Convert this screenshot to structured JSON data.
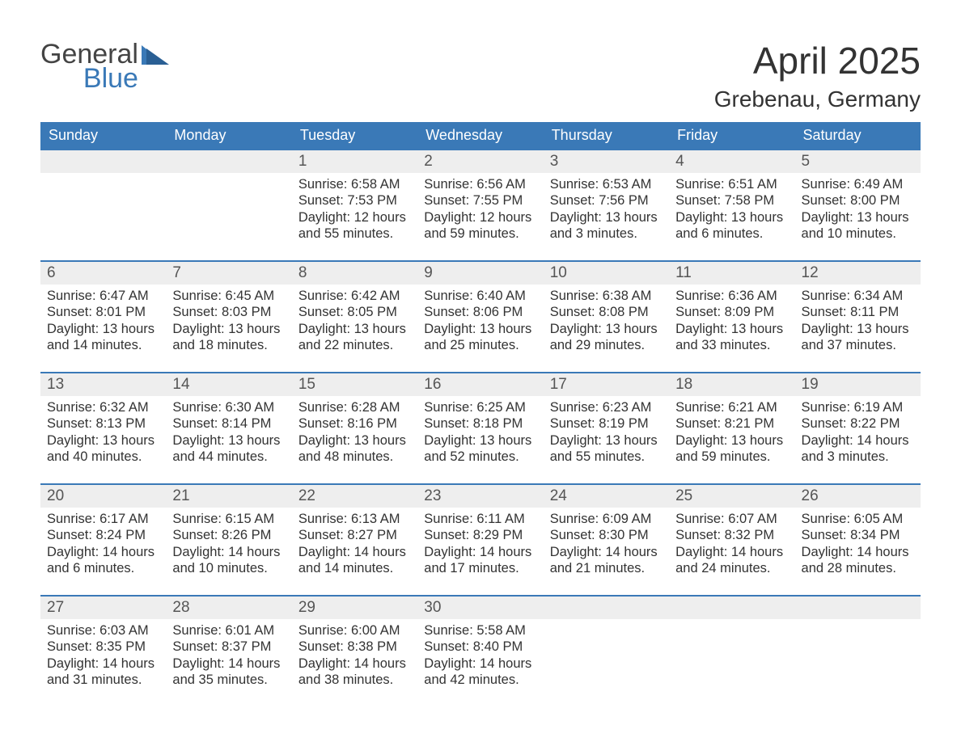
{
  "logo": {
    "general": "General",
    "blue": "Blue"
  },
  "title": {
    "month": "April 2025",
    "location": "Grebenau, Germany"
  },
  "colors": {
    "header_bg": "#3a79b7",
    "header_text": "#ffffff",
    "daynum_bg": "#eeeeee",
    "week_border": "#3a79b7",
    "text": "#333333",
    "logo_blue": "#3a79b7"
  },
  "dow": [
    "Sunday",
    "Monday",
    "Tuesday",
    "Wednesday",
    "Thursday",
    "Friday",
    "Saturday"
  ],
  "weeks": [
    {
      "days": [
        {
          "num": "",
          "sunrise": "",
          "sunset": "",
          "daylight": ""
        },
        {
          "num": "",
          "sunrise": "",
          "sunset": "",
          "daylight": ""
        },
        {
          "num": "1",
          "sunrise": "Sunrise: 6:58 AM",
          "sunset": "Sunset: 7:53 PM",
          "daylight": "Daylight: 12 hours and 55 minutes."
        },
        {
          "num": "2",
          "sunrise": "Sunrise: 6:56 AM",
          "sunset": "Sunset: 7:55 PM",
          "daylight": "Daylight: 12 hours and 59 minutes."
        },
        {
          "num": "3",
          "sunrise": "Sunrise: 6:53 AM",
          "sunset": "Sunset: 7:56 PM",
          "daylight": "Daylight: 13 hours and 3 minutes."
        },
        {
          "num": "4",
          "sunrise": "Sunrise: 6:51 AM",
          "sunset": "Sunset: 7:58 PM",
          "daylight": "Daylight: 13 hours and 6 minutes."
        },
        {
          "num": "5",
          "sunrise": "Sunrise: 6:49 AM",
          "sunset": "Sunset: 8:00 PM",
          "daylight": "Daylight: 13 hours and 10 minutes."
        }
      ]
    },
    {
      "days": [
        {
          "num": "6",
          "sunrise": "Sunrise: 6:47 AM",
          "sunset": "Sunset: 8:01 PM",
          "daylight": "Daylight: 13 hours and 14 minutes."
        },
        {
          "num": "7",
          "sunrise": "Sunrise: 6:45 AM",
          "sunset": "Sunset: 8:03 PM",
          "daylight": "Daylight: 13 hours and 18 minutes."
        },
        {
          "num": "8",
          "sunrise": "Sunrise: 6:42 AM",
          "sunset": "Sunset: 8:05 PM",
          "daylight": "Daylight: 13 hours and 22 minutes."
        },
        {
          "num": "9",
          "sunrise": "Sunrise: 6:40 AM",
          "sunset": "Sunset: 8:06 PM",
          "daylight": "Daylight: 13 hours and 25 minutes."
        },
        {
          "num": "10",
          "sunrise": "Sunrise: 6:38 AM",
          "sunset": "Sunset: 8:08 PM",
          "daylight": "Daylight: 13 hours and 29 minutes."
        },
        {
          "num": "11",
          "sunrise": "Sunrise: 6:36 AM",
          "sunset": "Sunset: 8:09 PM",
          "daylight": "Daylight: 13 hours and 33 minutes."
        },
        {
          "num": "12",
          "sunrise": "Sunrise: 6:34 AM",
          "sunset": "Sunset: 8:11 PM",
          "daylight": "Daylight: 13 hours and 37 minutes."
        }
      ]
    },
    {
      "days": [
        {
          "num": "13",
          "sunrise": "Sunrise: 6:32 AM",
          "sunset": "Sunset: 8:13 PM",
          "daylight": "Daylight: 13 hours and 40 minutes."
        },
        {
          "num": "14",
          "sunrise": "Sunrise: 6:30 AM",
          "sunset": "Sunset: 8:14 PM",
          "daylight": "Daylight: 13 hours and 44 minutes."
        },
        {
          "num": "15",
          "sunrise": "Sunrise: 6:28 AM",
          "sunset": "Sunset: 8:16 PM",
          "daylight": "Daylight: 13 hours and 48 minutes."
        },
        {
          "num": "16",
          "sunrise": "Sunrise: 6:25 AM",
          "sunset": "Sunset: 8:18 PM",
          "daylight": "Daylight: 13 hours and 52 minutes."
        },
        {
          "num": "17",
          "sunrise": "Sunrise: 6:23 AM",
          "sunset": "Sunset: 8:19 PM",
          "daylight": "Daylight: 13 hours and 55 minutes."
        },
        {
          "num": "18",
          "sunrise": "Sunrise: 6:21 AM",
          "sunset": "Sunset: 8:21 PM",
          "daylight": "Daylight: 13 hours and 59 minutes."
        },
        {
          "num": "19",
          "sunrise": "Sunrise: 6:19 AM",
          "sunset": "Sunset: 8:22 PM",
          "daylight": "Daylight: 14 hours and 3 minutes."
        }
      ]
    },
    {
      "days": [
        {
          "num": "20",
          "sunrise": "Sunrise: 6:17 AM",
          "sunset": "Sunset: 8:24 PM",
          "daylight": "Daylight: 14 hours and 6 minutes."
        },
        {
          "num": "21",
          "sunrise": "Sunrise: 6:15 AM",
          "sunset": "Sunset: 8:26 PM",
          "daylight": "Daylight: 14 hours and 10 minutes."
        },
        {
          "num": "22",
          "sunrise": "Sunrise: 6:13 AM",
          "sunset": "Sunset: 8:27 PM",
          "daylight": "Daylight: 14 hours and 14 minutes."
        },
        {
          "num": "23",
          "sunrise": "Sunrise: 6:11 AM",
          "sunset": "Sunset: 8:29 PM",
          "daylight": "Daylight: 14 hours and 17 minutes."
        },
        {
          "num": "24",
          "sunrise": "Sunrise: 6:09 AM",
          "sunset": "Sunset: 8:30 PM",
          "daylight": "Daylight: 14 hours and 21 minutes."
        },
        {
          "num": "25",
          "sunrise": "Sunrise: 6:07 AM",
          "sunset": "Sunset: 8:32 PM",
          "daylight": "Daylight: 14 hours and 24 minutes."
        },
        {
          "num": "26",
          "sunrise": "Sunrise: 6:05 AM",
          "sunset": "Sunset: 8:34 PM",
          "daylight": "Daylight: 14 hours and 28 minutes."
        }
      ]
    },
    {
      "days": [
        {
          "num": "27",
          "sunrise": "Sunrise: 6:03 AM",
          "sunset": "Sunset: 8:35 PM",
          "daylight": "Daylight: 14 hours and 31 minutes."
        },
        {
          "num": "28",
          "sunrise": "Sunrise: 6:01 AM",
          "sunset": "Sunset: 8:37 PM",
          "daylight": "Daylight: 14 hours and 35 minutes."
        },
        {
          "num": "29",
          "sunrise": "Sunrise: 6:00 AM",
          "sunset": "Sunset: 8:38 PM",
          "daylight": "Daylight: 14 hours and 38 minutes."
        },
        {
          "num": "30",
          "sunrise": "Sunrise: 5:58 AM",
          "sunset": "Sunset: 8:40 PM",
          "daylight": "Daylight: 14 hours and 42 minutes."
        },
        {
          "num": "",
          "sunrise": "",
          "sunset": "",
          "daylight": ""
        },
        {
          "num": "",
          "sunrise": "",
          "sunset": "",
          "daylight": ""
        },
        {
          "num": "",
          "sunrise": "",
          "sunset": "",
          "daylight": ""
        }
      ]
    }
  ]
}
